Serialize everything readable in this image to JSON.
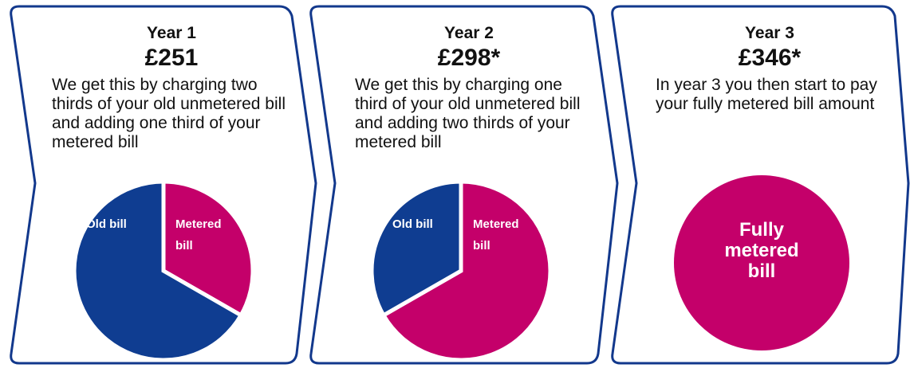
{
  "chart_data": [
    {
      "type": "pie",
      "title": "Year 1",
      "subtitle": "£251",
      "annotation": "We get this by charging two thirds of your old unmetered bill and adding one third of your metered bill",
      "categories": [
        "Metered bill",
        "Old bill"
      ],
      "values": [
        33.3,
        66.7
      ],
      "colors": [
        "#c4006a",
        "#0f3d91"
      ]
    },
    {
      "type": "pie",
      "title": "Year 2",
      "subtitle": "£298*",
      "annotation": "We get this by charging one third of your old unmetered bill and adding two thirds of your metered bill",
      "categories": [
        "Metered bill",
        "Old bill"
      ],
      "values": [
        66.7,
        33.3
      ],
      "colors": [
        "#c4006a",
        "#0f3d91"
      ]
    },
    {
      "type": "pie",
      "title": "Year 3",
      "subtitle": "£346*",
      "annotation": "In year 3 you then start to pay your fully metered bill amount",
      "categories": [
        "Fully metered bill"
      ],
      "values": [
        100
      ],
      "colors": [
        "#c4006a"
      ]
    }
  ]
}
